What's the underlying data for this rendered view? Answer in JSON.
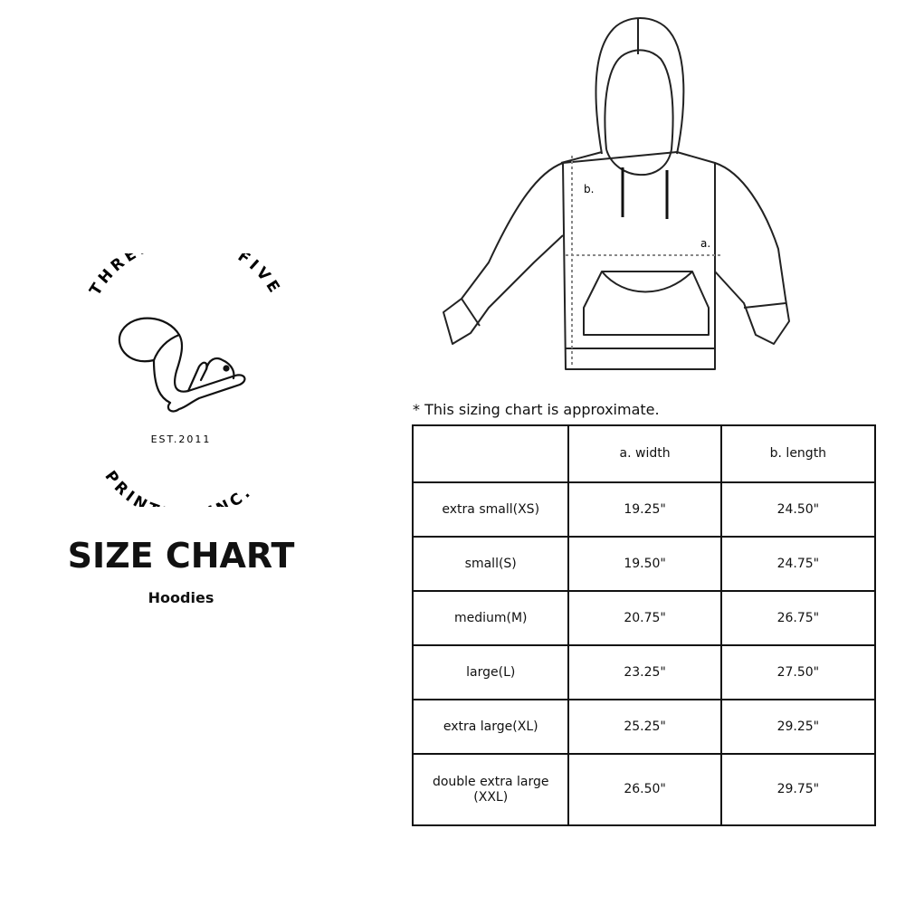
{
  "logo": {
    "top_text": "THREE SIXTY FIVE",
    "bottom_text": "PRINTING INC.",
    "established": "EST.2011",
    "icon": "squirrel-icon"
  },
  "title": "SIZE CHART",
  "subtitle": "Hoodies",
  "diagram": {
    "label_a": "a.",
    "label_b": "b.",
    "icon": "hoodie-outline"
  },
  "note": "* This sizing chart is approximate.",
  "table": {
    "headers": [
      "",
      "a. width",
      "b. length"
    ],
    "rows": [
      {
        "size": "extra small(XS)",
        "width": "19.25\"",
        "length": "24.50\""
      },
      {
        "size": "small(S)",
        "width": "19.50\"",
        "length": "24.75\""
      },
      {
        "size": "medium(M)",
        "width": "20.75\"",
        "length": "26.75\""
      },
      {
        "size": "large(L)",
        "width": "23.25\"",
        "length": "27.50\""
      },
      {
        "size": "extra large(XL)",
        "width": "25.25\"",
        "length": "29.25\""
      },
      {
        "size": "double extra large (XXL)",
        "width": "26.50\"",
        "length": "29.75\""
      }
    ]
  }
}
